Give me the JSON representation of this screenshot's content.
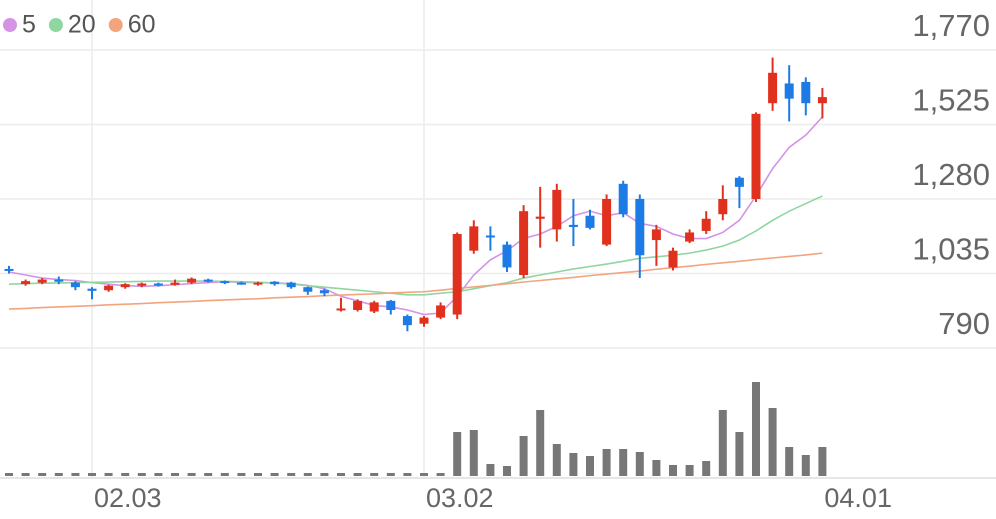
{
  "chart_data": {
    "type": "candlestick",
    "categories": [
      null,
      null,
      null,
      null,
      null,
      "02.03",
      null,
      null,
      null,
      null,
      null,
      null,
      null,
      null,
      null,
      null,
      null,
      null,
      null,
      null,
      null,
      null,
      null,
      null,
      null,
      "03.02",
      null,
      null,
      null,
      null,
      null,
      null,
      null,
      null,
      null,
      null,
      null,
      null,
      null,
      null,
      null,
      null,
      null,
      null,
      null,
      null,
      null,
      null,
      null,
      "04.01"
    ],
    "open": [
      1050,
      1000,
      1005,
      1015,
      1005,
      985,
      980,
      990,
      995,
      1002,
      998,
      1005,
      1015,
      1010,
      1005,
      1000,
      1008,
      1005,
      990,
      980,
      915,
      915,
      910,
      945,
      895,
      870,
      890,
      900,
      1110,
      1160,
      1130,
      1030,
      1215,
      1180,
      1195,
      1225,
      1130,
      1330,
      1280,
      1145,
      1055,
      1140,
      1175,
      1230,
      1350,
      1280,
      1595,
      1660,
      1665,
      1595
    ],
    "high": [
      1060,
      1015,
      1020,
      1025,
      1010,
      990,
      998,
      1003,
      1005,
      1005,
      1015,
      1022,
      1018,
      1012,
      1008,
      1008,
      1010,
      1008,
      992,
      985,
      955,
      950,
      945,
      948,
      900,
      895,
      940,
      1170,
      1210,
      1190,
      1140,
      1260,
      1320,
      1330,
      1280,
      1245,
      1295,
      1340,
      1295,
      1195,
      1120,
      1180,
      1240,
      1325,
      1355,
      1565,
      1745,
      1720,
      1680,
      1645
    ],
    "low": [
      1035,
      995,
      1000,
      1000,
      980,
      950,
      975,
      985,
      990,
      992,
      995,
      1000,
      1005,
      1000,
      998,
      995,
      995,
      985,
      965,
      960,
      910,
      910,
      905,
      900,
      845,
      860,
      885,
      885,
      1100,
      1110,
      1040,
      1020,
      1120,
      1140,
      1125,
      1180,
      1125,
      1220,
      1020,
      1060,
      1045,
      1135,
      1165,
      1210,
      1250,
      1270,
      1570,
      1535,
      1555,
      1545
    ],
    "close": [
      1045,
      1010,
      1015,
      1008,
      990,
      978,
      995,
      1000,
      1002,
      997,
      1005,
      1018,
      1008,
      1005,
      1000,
      1005,
      1000,
      990,
      975,
      970,
      920,
      945,
      940,
      915,
      865,
      890,
      930,
      1165,
      1190,
      1155,
      1055,
      1240,
      1222,
      1310,
      1188,
      1185,
      1280,
      1230,
      1095,
      1180,
      1110,
      1170,
      1215,
      1280,
      1320,
      1560,
      1695,
      1610,
      1595,
      1615
    ],
    "volume": [
      3,
      3,
      3,
      3,
      3,
      3,
      3,
      3,
      3,
      3,
      3,
      3,
      3,
      3,
      3,
      3,
      3,
      3,
      3,
      3,
      3,
      3,
      3,
      3,
      3,
      3,
      3,
      44,
      46,
      12,
      10,
      40,
      66,
      32,
      23,
      20,
      27,
      27,
      24,
      16,
      11,
      11,
      15,
      66,
      44,
      94,
      68,
      29,
      21,
      29
    ],
    "up_color": "#e0301e",
    "down_color": "#1d7be6",
    "volume_color": "#777777",
    "series": [
      {
        "name": "5",
        "color": "#d493e6",
        "values": [
          1040,
          1030,
          1020,
          1015,
          1012,
          1005,
          1000,
          995,
          993,
          995,
          998,
          1002,
          1005,
          1008,
          1006,
          1005,
          1004,
          1002,
          996,
          985,
          960,
          945,
          930,
          925,
          915,
          900,
          905,
          960,
          1030,
          1080,
          1110,
          1150,
          1165,
          1190,
          1225,
          1240,
          1225,
          1235,
          1200,
          1190,
          1165,
          1150,
          1150,
          1170,
          1210,
          1290,
          1380,
          1450,
          1490,
          1550
        ]
      },
      {
        "name": "20",
        "color": "#8fd6a0",
        "values": [
          1000,
          1002,
          1003,
          1004,
          1005,
          1006,
          1007,
          1008,
          1009,
          1010,
          1010,
          1010,
          1010,
          1009,
          1008,
          1006,
          1004,
          1000,
          995,
          990,
          985,
          980,
          975,
          970,
          965,
          965,
          970,
          975,
          985,
          995,
          1005,
          1020,
          1030,
          1040,
          1050,
          1058,
          1066,
          1075,
          1085,
          1090,
          1095,
          1102,
          1112,
          1125,
          1145,
          1175,
          1210,
          1240,
          1265,
          1290
        ]
      },
      {
        "name": "60",
        "color": "#f2a47e",
        "values": [
          918,
          920,
          923,
          925,
          927,
          929,
          932,
          934,
          936,
          939,
          941,
          943,
          946,
          948,
          950,
          952,
          955,
          957,
          959,
          962,
          964,
          966,
          968,
          971,
          973,
          975,
          980,
          986,
          991,
          996,
          1001,
          1007,
          1012,
          1017,
          1022,
          1028,
          1033,
          1038,
          1043,
          1049,
          1054,
          1059,
          1065,
          1070,
          1075,
          1081,
          1086,
          1091,
          1096,
          1102
        ]
      }
    ],
    "ylim": [
      790,
      1770
    ],
    "yticks": [
      {
        "value": 1770,
        "label": "1,770"
      },
      {
        "value": 1525,
        "label": "1,525"
      },
      {
        "value": 1280,
        "label": "1,280"
      },
      {
        "value": 1035,
        "label": "1,035"
      },
      790
    ],
    "grid": true
  }
}
